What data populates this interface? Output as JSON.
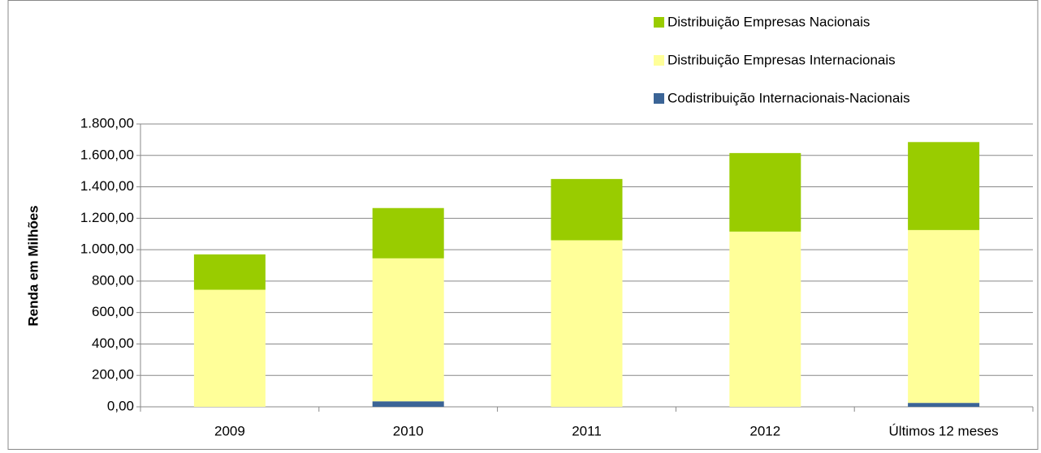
{
  "chart_data": {
    "type": "stacked_bar",
    "y_label": "Renda em Milhões",
    "categories": [
      "2009",
      "2010",
      "2011",
      "2012",
      "Últimos 12 meses"
    ],
    "series": [
      {
        "name": "Codistribuição Internacionais-Nacionais",
        "color": "#3b6496",
        "values": [
          0,
          35,
          0,
          0,
          25
        ]
      },
      {
        "name": "Distribuição Empresas Internacionais",
        "color": "#ffff99",
        "values": [
          745,
          910,
          1060,
          1115,
          1100
        ]
      },
      {
        "name": "Distribuição Empresas Nacionais",
        "color": "#99cc00",
        "values": [
          225,
          320,
          390,
          500,
          560
        ]
      }
    ],
    "ylim": [
      0,
      1800
    ],
    "yticks": [
      {
        "value": 0,
        "label": "0,00"
      },
      {
        "value": 200,
        "label": "200,00"
      },
      {
        "value": 400,
        "label": "400,00"
      },
      {
        "value": 600,
        "label": "600,00"
      },
      {
        "value": 800,
        "label": "800,00"
      },
      {
        "value": 1000,
        "label": "1.000,00"
      },
      {
        "value": 1200,
        "label": "1.200,00"
      },
      {
        "value": 1400,
        "label": "1.400,00"
      },
      {
        "value": 1600,
        "label": "1.600,00"
      },
      {
        "value": 1800,
        "label": "1.800,00"
      }
    ],
    "grid": true,
    "legend": "top-right"
  }
}
